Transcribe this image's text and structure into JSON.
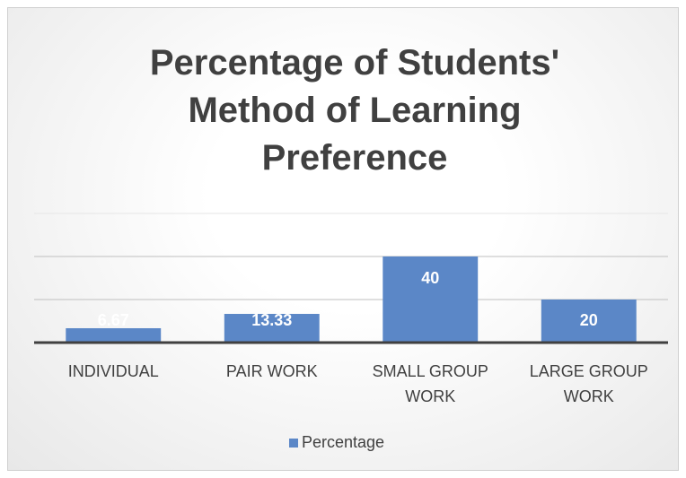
{
  "chart_data": {
    "type": "bar",
    "title": "Percentage of Students' Method of Learning Preference",
    "categories": [
      "INDIVIDUAL",
      "PAIR WORK",
      "SMALL GROUP WORK",
      "LARGE GROUP WORK"
    ],
    "series": [
      {
        "name": "Percentage",
        "color": "#5b87c7",
        "values": [
          6.67,
          13.33,
          40,
          20
        ]
      }
    ],
    "ylim": [
      0,
      60
    ],
    "yticks": [
      0,
      20,
      40,
      60
    ],
    "grid": true,
    "legend": "bottom"
  }
}
